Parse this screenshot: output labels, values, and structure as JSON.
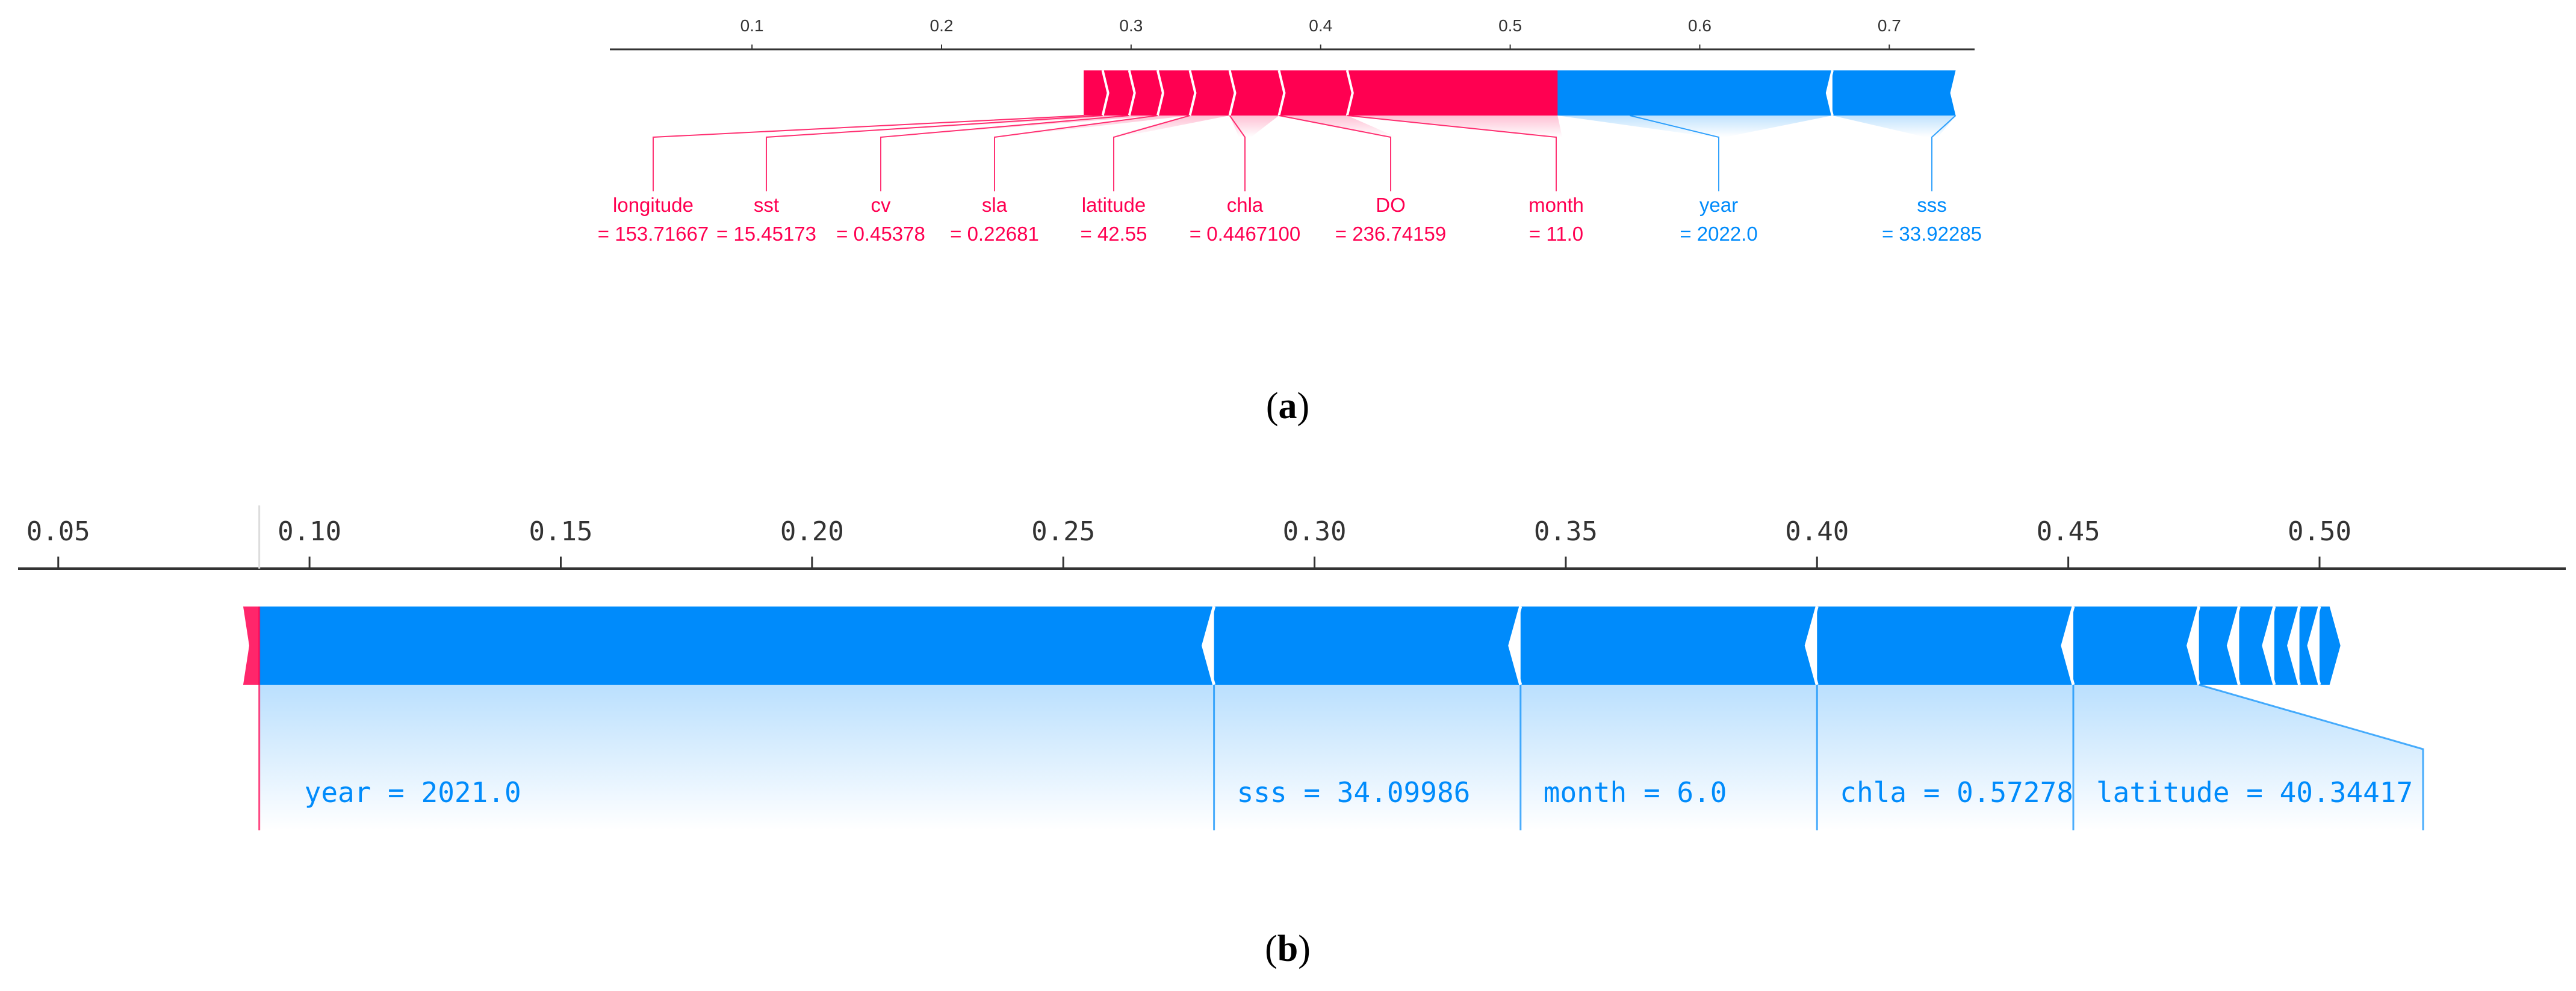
{
  "chart_data": [
    {
      "type": "bar",
      "panel": "a",
      "caption_letter": "a",
      "xlim": [
        0.025,
        0.745
      ],
      "ticks": [
        "0.1",
        "0.2",
        "0.3",
        "0.4",
        "0.5",
        "0.6",
        "0.7"
      ],
      "tick_values": [
        0.1,
        0.2,
        0.3,
        0.4,
        0.5,
        0.6,
        0.7
      ],
      "base_value_shown": 0.275,
      "output_value": 0.525,
      "positive_color": "#ff0051",
      "negative_color": "#008bfb",
      "positive_features": [
        {
          "name": "longitude",
          "value": "= 153.71667",
          "from": 0.275,
          "to": 0.285
        },
        {
          "name": "sst",
          "value": "= 15.45173",
          "from": 0.285,
          "to": 0.299
        },
        {
          "name": "cv",
          "value": "= 0.45378",
          "from": 0.299,
          "to": 0.314
        },
        {
          "name": "sla",
          "value": "= 0.22681",
          "from": 0.314,
          "to": 0.331
        },
        {
          "name": "latitude",
          "value": "= 42.55",
          "from": 0.331,
          "to": 0.352
        },
        {
          "name": "chla",
          "value": "= 0.4467100",
          "from": 0.352,
          "to": 0.378
        },
        {
          "name": "DO",
          "value": "= 236.74159",
          "from": 0.378,
          "to": 0.414
        },
        {
          "name": "month",
          "value": "= 11.0",
          "from": 0.414,
          "to": 0.525
        }
      ],
      "negative_features": [
        {
          "name": "year",
          "value": "= 2022.0",
          "from": 0.525,
          "to": 0.67
        },
        {
          "name": "sss",
          "value": "= 33.92285",
          "from": 0.67,
          "to": 0.735
        }
      ]
    },
    {
      "type": "bar",
      "panel": "b",
      "caption_letter": "b",
      "xlim": [
        0.042,
        0.549
      ],
      "ticks": [
        "0.05",
        "0.10",
        "0.15",
        "0.20",
        "0.25",
        "0.30",
        "0.35",
        "0.40",
        "0.45",
        "0.50"
      ],
      "tick_values": [
        0.05,
        0.1,
        0.15,
        0.2,
        0.25,
        0.3,
        0.35,
        0.4,
        0.45,
        0.5
      ],
      "output_value": 0.09,
      "positive_color": "#ff0051",
      "negative_color": "#008bfb",
      "positive_features": [
        {
          "name": "",
          "value": "",
          "from": 0.088,
          "to": 0.09
        }
      ],
      "negative_features": [
        {
          "label": "year = 2021.0",
          "from": 0.09,
          "to": 0.28
        },
        {
          "label": "sss = 34.09986",
          "from": 0.28,
          "to": 0.341
        },
        {
          "label": "month = 6.0",
          "from": 0.341,
          "to": 0.4
        },
        {
          "label": "chla = 0.57278",
          "from": 0.4,
          "to": 0.451
        },
        {
          "label": "latitude = 40.34417",
          "from": 0.451,
          "to": 0.476
        },
        {
          "label": "",
          "from": 0.476,
          "to": 0.484
        },
        {
          "label": "",
          "from": 0.484,
          "to": 0.491
        },
        {
          "label": "",
          "from": 0.491,
          "to": 0.496
        },
        {
          "label": "",
          "from": 0.496,
          "to": 0.5
        },
        {
          "label": "",
          "from": 0.5,
          "to": 0.502
        }
      ]
    }
  ]
}
